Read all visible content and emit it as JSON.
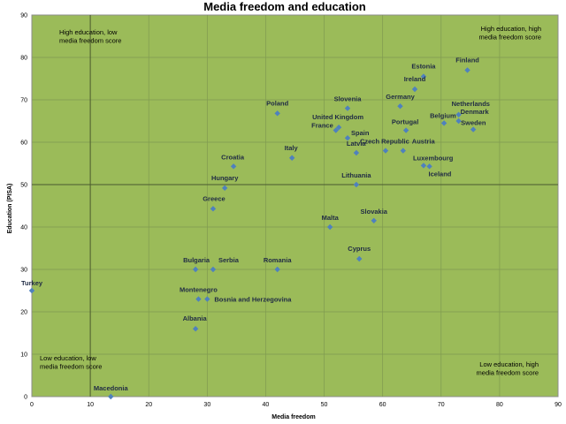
{
  "chart_data": {
    "type": "scatter",
    "title": "Media freedom and education",
    "xlabel": "Media freedom",
    "ylabel": "Education (PISA)",
    "xlim": [
      0,
      90
    ],
    "ylim": [
      0,
      90
    ],
    "x_ticks": [
      0,
      10,
      20,
      30,
      40,
      50,
      60,
      70,
      80,
      90
    ],
    "y_ticks": [
      0,
      10,
      20,
      30,
      40,
      50,
      60,
      70,
      80,
      90
    ],
    "grid": true,
    "reference_lines": {
      "x": 10,
      "y": 50
    },
    "colors": {
      "plot_background": "#9bbb59",
      "marker": "#4f81bd",
      "gridline": "#7f9a50",
      "axis": "#8c8c8c"
    },
    "quadrant_labels": [
      {
        "id": "top-left",
        "lines": [
          "High education, low",
          "media freedom score"
        ]
      },
      {
        "id": "top-right",
        "lines": [
          "High education, high",
          "media freedom score"
        ]
      },
      {
        "id": "bottom-left",
        "lines": [
          "Low education, low",
          "media freedom score"
        ]
      },
      {
        "id": "bottom-right",
        "lines": [
          "Low education, high",
          "media freedom score"
        ]
      }
    ],
    "points": [
      {
        "label": "Finland",
        "x": 74.5,
        "y": 77
      },
      {
        "label": "Estonia",
        "x": 67,
        "y": 75.5
      },
      {
        "label": "Ireland",
        "x": 65.5,
        "y": 72.5
      },
      {
        "label": "Germany",
        "x": 63,
        "y": 68.5
      },
      {
        "label": "Slovenia",
        "x": 54,
        "y": 68
      },
      {
        "label": "Netherlands",
        "x": 73,
        "y": 66.5
      },
      {
        "label": "Poland",
        "x": 42,
        "y": 66.8
      },
      {
        "label": "Denmark",
        "x": 73,
        "y": 65
      },
      {
        "label": "Belgium",
        "x": 70.5,
        "y": 64.5
      },
      {
        "label": "United Kingdom",
        "x": 52.5,
        "y": 63.5
      },
      {
        "label": "France",
        "x": 52,
        "y": 62.8
      },
      {
        "label": "Sweden",
        "x": 75.5,
        "y": 63
      },
      {
        "label": "Portugal",
        "x": 64,
        "y": 62.8
      },
      {
        "label": "Spain",
        "x": 54,
        "y": 61
      },
      {
        "label": "Latvia",
        "x": 55.5,
        "y": 57.5
      },
      {
        "label": "Czech Republic",
        "x": 60.5,
        "y": 58
      },
      {
        "label": "Austria",
        "x": 63.5,
        "y": 58
      },
      {
        "label": "Italy",
        "x": 44.5,
        "y": 56.3
      },
      {
        "label": "Luxembourg",
        "x": 67,
        "y": 54.5
      },
      {
        "label": "Iceland",
        "x": 68,
        "y": 54.3
      },
      {
        "label": "Croatia",
        "x": 34.5,
        "y": 54.3
      },
      {
        "label": "Lithuania",
        "x": 55.5,
        "y": 50
      },
      {
        "label": "Hungary",
        "x": 33,
        "y": 49.2
      },
      {
        "label": "Greece",
        "x": 31,
        "y": 44.3
      },
      {
        "label": "Slovakia",
        "x": 58.5,
        "y": 41.5
      },
      {
        "label": "Malta",
        "x": 51,
        "y": 40
      },
      {
        "label": "Cyprus",
        "x": 56,
        "y": 32.5
      },
      {
        "label": "Bulgaria",
        "x": 28,
        "y": 30
      },
      {
        "label": "Serbia",
        "x": 31,
        "y": 30
      },
      {
        "label": "Romania",
        "x": 42,
        "y": 30
      },
      {
        "label": "Turkey",
        "x": 0,
        "y": 25
      },
      {
        "label": "Montenegro",
        "x": 28.5,
        "y": 23
      },
      {
        "label": "Bosnia and Herzegovina",
        "x": 30,
        "y": 23
      },
      {
        "label": "Albania",
        "x": 28,
        "y": 16
      },
      {
        "label": "Macedonia",
        "x": 13.5,
        "y": 0
      }
    ]
  }
}
